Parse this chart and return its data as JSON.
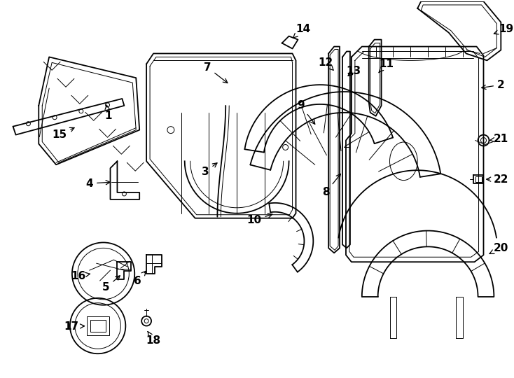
{
  "bg_color": "#ffffff",
  "line_color": "#000000",
  "fig_width": 7.34,
  "fig_height": 5.4,
  "dpi": 100,
  "label_fontsize": 11,
  "label_bold": true
}
